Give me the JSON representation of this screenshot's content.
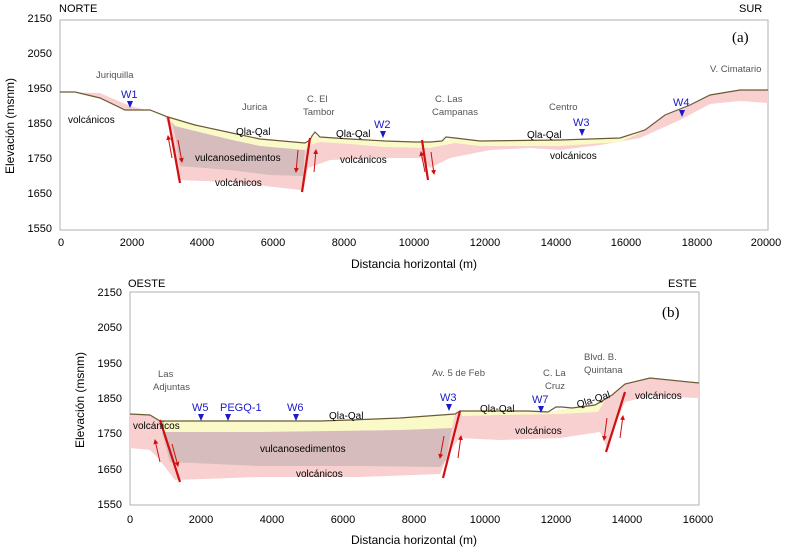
{
  "panel_a": {
    "id_label": "(a)",
    "left_dir": "NORTE",
    "right_dir": "SUR",
    "ylabel": "Elevación (msnm)",
    "xlabel": "Distancia horizontal (m)",
    "yticks": [
      "2150",
      "2050",
      "1950",
      "1850",
      "1750",
      "1650",
      "1550"
    ],
    "xticks": [
      "0",
      "2000",
      "4000",
      "6000",
      "8000",
      "10000",
      "12000",
      "14000",
      "16000",
      "18000",
      "20000"
    ],
    "places": {
      "juriquilla": "Juriquilla",
      "jurica": "Jurica",
      "tambor_1": "C. El",
      "tambor_2": "Tambor",
      "campanas_1": "C. Las",
      "campanas_2": "Campanas",
      "centro": "Centro",
      "cimatario": "V. Cimatario"
    },
    "units": {
      "volcanicos_left": "volcánicos",
      "vulcanosedimentos": "vulcanosedimentos",
      "volcanicos_lower": "volcánicos",
      "qla_1": "Qla-Qal",
      "qla_2": "Qla-Qal",
      "qla_3": "Qla-Qal",
      "volcanicos_mid": "volcánicos",
      "volcanicos_right": "volcánicos"
    },
    "wells": {
      "w1": "W1",
      "w2": "W2",
      "w3": "W3",
      "w4": "W4"
    }
  },
  "panel_b": {
    "id_label": "(b)",
    "left_dir": "OESTE",
    "right_dir": "ESTE",
    "ylabel": "Elevación (msnm)",
    "xlabel": "Distancia horizontal (m)",
    "yticks": [
      "2150",
      "2050",
      "1950",
      "1850",
      "1750",
      "1650",
      "1550"
    ],
    "xticks": [
      "0",
      "2000",
      "4000",
      "6000",
      "8000",
      "10000",
      "12000",
      "14000",
      "16000"
    ],
    "places": {
      "adjuntas_1": "Las",
      "adjuntas_2": "Adjuntas",
      "feb": "Av. 5 de Feb",
      "cruz_1": "C. La",
      "cruz_2": "Cruz",
      "quintana_1": "Blvd. B.",
      "quintana_2": "Quintana"
    },
    "units": {
      "volcanicos_left": "volcánicos",
      "vulcanosedimentos": "vulcanosedimentos",
      "volcanicos_lower": "volcánicos",
      "qla_1": "Qla-Qal",
      "qla_2": "Qla-Qal",
      "qla_3": "Qla-Qal",
      "volcanicos_mid": "volcánicos",
      "volcanicos_right": "volcánicos"
    },
    "wells": {
      "w5": "W5",
      "pegq": "PEGQ-1",
      "w6": "W6",
      "w3": "W3",
      "w7": "W7"
    }
  },
  "colors": {
    "volcanic": "#f8d0d0",
    "basin": "#d6bcbc",
    "alluvium": "#fafac8",
    "fault": "#d01010",
    "well": "#1a1ac8",
    "surface": "#6b5a35"
  }
}
